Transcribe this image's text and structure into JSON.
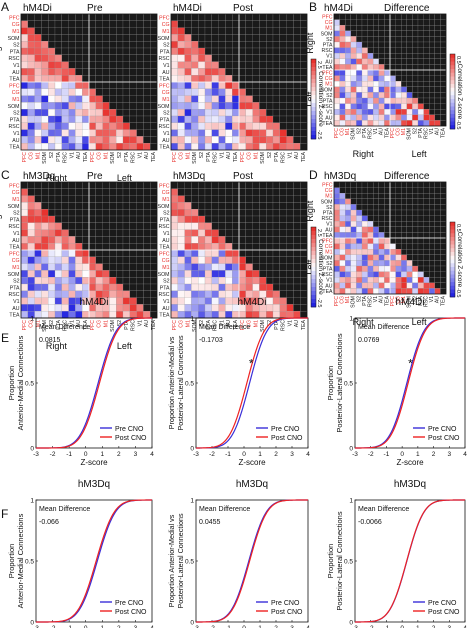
{
  "panel_letters": [
    "A",
    "B",
    "C",
    "D",
    "E",
    "F"
  ],
  "regions": [
    "PFC",
    "CG",
    "M1",
    "SOM",
    "S2",
    "PTA",
    "RSC",
    "V1",
    "AU",
    "TEA"
  ],
  "region_colors": [
    "#e8322e",
    "#e8322e",
    "#e8322e",
    "#222222",
    "#222222",
    "#222222",
    "#222222",
    "#222222",
    "#222222",
    "#222222"
  ],
  "side_labels": {
    "right": "Right",
    "left": "Left"
  },
  "colors": {
    "pos": "#e8322e",
    "neg": "#2323e0",
    "neutral": "#ffffff",
    "mask": "#1a1a1a",
    "grid": "#9a9a9a",
    "pre": "#3a2fd8",
    "post": "#ee2222"
  },
  "colorbar": {
    "label": "Correlation Z-score",
    "mat_ticks": [
      "2.5",
      "-2.5"
    ],
    "diff_ticks": [
      "0.5",
      "-0.5"
    ]
  },
  "matrix_rows": [
    {
      "title": "hM4Di",
      "panels": [
        "Pre",
        "Post",
        "Difference"
      ]
    },
    {
      "title": "hM3Dq",
      "panels": [
        "Pre",
        "Post",
        "Difference"
      ]
    }
  ],
  "cdf_common": {
    "ylabel": "Proportion",
    "xlabel": "Z-score",
    "xticks": [
      "-3",
      "-2",
      "-1",
      "0",
      "1",
      "2",
      "3",
      "4"
    ],
    "yticks": [
      "0",
      "0.5",
      "1"
    ],
    "stat_label": "Mean Difference",
    "legend": [
      "Pre CNO",
      "Post CNO"
    ],
    "connection_labels": [
      "Anterior-Medial Connections",
      "Anterior-Medial vs Posterior-Lateral Connections",
      "Posterior-Lateral Connections"
    ],
    "connection_label_lines": [
      [
        "Anterior-Medial Connections"
      ],
      [
        "Anterior-Medial vs",
        "Posterior-Lateral Connections"
      ],
      [
        "Posterior-Lateral Connections"
      ]
    ]
  },
  "chart_data": [
    {
      "type": "line",
      "row": "E",
      "title": "hM4Di",
      "stat": "0.0815",
      "significant": false,
      "xlim": [
        -3,
        4
      ],
      "ylim": [
        0,
        1
      ],
      "series": [
        {
          "name": "Pre CNO",
          "mean": 0.75,
          "sd": 1.0
        },
        {
          "name": "Post CNO",
          "mean": 0.83,
          "sd": 1.0
        }
      ]
    },
    {
      "type": "line",
      "row": "E",
      "title": "hM4Di",
      "stat": "-0.1703",
      "significant": true,
      "xlim": [
        -3,
        4
      ],
      "ylim": [
        0,
        1
      ],
      "series": [
        {
          "name": "Pre CNO",
          "mean": 0.35,
          "sd": 1.0
        },
        {
          "name": "Post CNO",
          "mean": 0.18,
          "sd": 1.0
        }
      ]
    },
    {
      "type": "line",
      "row": "E",
      "title": "hM4Di",
      "stat": "0.0769",
      "significant": true,
      "xlim": [
        -3,
        4
      ],
      "ylim": [
        0,
        1
      ],
      "series": [
        {
          "name": "Pre CNO",
          "mean": 0.3,
          "sd": 1.0
        },
        {
          "name": "Post CNO",
          "mean": 0.38,
          "sd": 1.0
        }
      ]
    },
    {
      "type": "line",
      "row": "F",
      "title": "hM3Dq",
      "stat": "-0.066",
      "significant": false,
      "xlim": [
        -3,
        4
      ],
      "ylim": [
        0,
        1
      ],
      "series": [
        {
          "name": "Pre CNO",
          "mean": 0.7,
          "sd": 1.0
        },
        {
          "name": "Post CNO",
          "mean": 0.63,
          "sd": 1.0
        }
      ]
    },
    {
      "type": "line",
      "row": "F",
      "title": "hM3Dq",
      "stat": "0.0455",
      "significant": false,
      "xlim": [
        -3,
        4
      ],
      "ylim": [
        0,
        1
      ],
      "series": [
        {
          "name": "Pre CNO",
          "mean": 0.3,
          "sd": 1.0
        },
        {
          "name": "Post CNO",
          "mean": 0.35,
          "sd": 1.0
        }
      ]
    },
    {
      "type": "line",
      "row": "F",
      "title": "hM3Dq",
      "stat": "-0.0066",
      "significant": false,
      "xlim": [
        -3,
        4
      ],
      "ylim": [
        0,
        1
      ],
      "series": [
        {
          "name": "Pre CNO",
          "mean": 0.3,
          "sd": 1.0
        },
        {
          "name": "Post CNO",
          "mean": 0.29,
          "sd": 1.0
        }
      ]
    }
  ]
}
